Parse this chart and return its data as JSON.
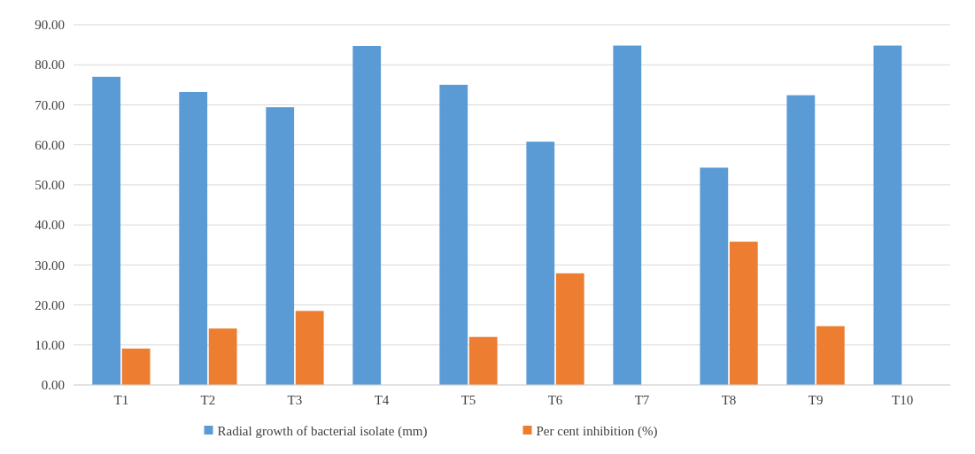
{
  "chart_data": {
    "type": "bar",
    "categories": [
      "T1",
      "T2",
      "T3",
      "T4",
      "T5",
      "T6",
      "T7",
      "T8",
      "T9",
      "T10"
    ],
    "series": [
      {
        "name": "Radial growth of bacterial isolate (mm)",
        "color": "#5b9bd5",
        "values": [
          77.0,
          73.2,
          69.4,
          84.7,
          75.0,
          60.8,
          84.8,
          54.3,
          72.4,
          84.8
        ]
      },
      {
        "name": "Per cent inhibition (%)",
        "color": "#ed7d31",
        "values": [
          9.1,
          14.1,
          18.5,
          0,
          12.0,
          27.9,
          0,
          35.8,
          14.7,
          0
        ]
      }
    ],
    "ylim": [
      0,
      90
    ],
    "yticks": [
      {
        "value": 0,
        "label": "0.00"
      },
      {
        "value": 10,
        "label": "10.00"
      },
      {
        "value": 20,
        "label": "20.00"
      },
      {
        "value": 30,
        "label": "30.00"
      },
      {
        "value": 40,
        "label": "40.00"
      },
      {
        "value": 50,
        "label": "50.00"
      },
      {
        "value": 60,
        "label": "60.00"
      },
      {
        "value": 70,
        "label": "70.00"
      },
      {
        "value": 80,
        "label": "80.00"
      },
      {
        "value": 90,
        "label": "90.00"
      }
    ],
    "grid": "y",
    "legend": "bottom"
  }
}
